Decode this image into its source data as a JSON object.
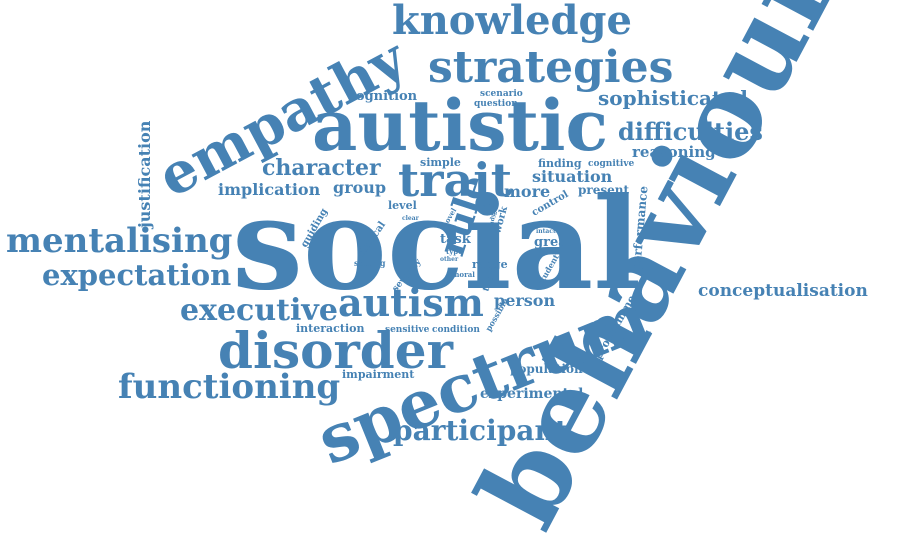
{
  "color": "#4682b4",
  "words": [
    "behaviour",
    "social",
    "spectrum",
    "autistic",
    "disorder",
    "autism",
    "trait",
    "empathy",
    "strategies",
    "knowledge",
    "mentalising",
    "functioning",
    "expectation",
    "executive",
    "participant",
    "difficulties",
    "sophisticated",
    "conceptualisation",
    "character",
    "implication",
    "group",
    "rule",
    "person",
    "reasoning",
    "cognition",
    "justification",
    "situation",
    "more",
    "present",
    "finding",
    "cognitive",
    "simple",
    "scenario",
    "question",
    "level",
    "control",
    "clinical",
    "guiding",
    "setting",
    "severity",
    "task",
    "great",
    "range",
    "thesis",
    "performance",
    "programme",
    "population",
    "experimental",
    "impairment",
    "interaction",
    "sensitive",
    "condition",
    "possible",
    "student",
    "moral",
    "novel",
    "other",
    "type",
    "clear",
    "rank",
    "role",
    "intact",
    "work",
    "study"
  ]
}
